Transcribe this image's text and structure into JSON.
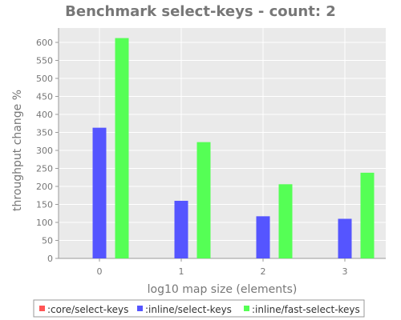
{
  "chart_data": {
    "type": "bar",
    "title": "Benchmark select-keys - count: 2",
    "xlabel": "log10 map size (elements)",
    "ylabel": "throughput change %",
    "categories": [
      "0",
      "1",
      "2",
      "3"
    ],
    "ylim": [
      0,
      640
    ],
    "yticks": [
      0,
      50,
      100,
      150,
      200,
      250,
      300,
      350,
      400,
      450,
      500,
      550,
      600
    ],
    "grid": true,
    "legend_position": "bottom",
    "series": [
      {
        "name": ":core/select-keys",
        "color": "#ff5555",
        "values": [
          0,
          0,
          0,
          0
        ]
      },
      {
        "name": ":inline/select-keys",
        "color": "#5555ff",
        "values": [
          363,
          160,
          117,
          110
        ]
      },
      {
        "name": ":inline/fast-select-keys",
        "color": "#55ff55",
        "values": [
          612,
          323,
          206,
          238
        ]
      }
    ]
  }
}
